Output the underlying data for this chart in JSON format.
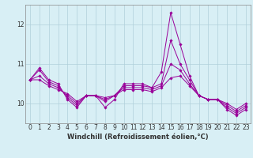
{
  "x": [
    0,
    1,
    2,
    3,
    4,
    5,
    6,
    7,
    8,
    9,
    10,
    11,
    12,
    13,
    14,
    15,
    16,
    17,
    18,
    19,
    20,
    21,
    22,
    23
  ],
  "series": [
    [
      10.6,
      10.9,
      10.6,
      10.5,
      10.1,
      9.9,
      10.2,
      10.2,
      9.9,
      10.1,
      10.5,
      10.5,
      10.5,
      10.4,
      10.8,
      12.3,
      11.5,
      10.7,
      10.2,
      10.1,
      10.1,
      9.85,
      9.7,
      9.85
    ],
    [
      10.6,
      10.85,
      10.55,
      10.45,
      10.15,
      9.95,
      10.2,
      10.2,
      10.05,
      10.2,
      10.45,
      10.45,
      10.45,
      10.4,
      10.5,
      11.6,
      11.0,
      10.6,
      10.2,
      10.1,
      10.1,
      9.9,
      9.75,
      9.9
    ],
    [
      10.6,
      10.7,
      10.5,
      10.4,
      10.2,
      10.0,
      10.2,
      10.2,
      10.1,
      10.2,
      10.4,
      10.4,
      10.4,
      10.35,
      10.45,
      11.0,
      10.85,
      10.5,
      10.2,
      10.1,
      10.1,
      9.95,
      9.8,
      9.95
    ],
    [
      10.6,
      10.6,
      10.45,
      10.35,
      10.25,
      10.05,
      10.2,
      10.2,
      10.15,
      10.2,
      10.35,
      10.35,
      10.35,
      10.3,
      10.4,
      10.65,
      10.7,
      10.45,
      10.2,
      10.1,
      10.1,
      10.0,
      9.85,
      10.0
    ]
  ],
  "line_color": "#990099",
  "marker": "D",
  "markersize": 1.8,
  "linewidth": 0.7,
  "bg_color": "#d8eff5",
  "grid_color": "#b0d0da",
  "tick_color": "#333333",
  "xlabel": "Windchill (Refroidissement éolien,°C)",
  "xlim": [
    -0.5,
    23.5
  ],
  "ylim": [
    9.5,
    12.5
  ],
  "yticks": [
    10,
    11,
    12
  ],
  "xticks": [
    0,
    1,
    2,
    3,
    4,
    5,
    6,
    7,
    8,
    9,
    10,
    11,
    12,
    13,
    14,
    15,
    16,
    17,
    18,
    19,
    20,
    21,
    22,
    23
  ],
  "label_fontsize": 6.0,
  "tick_fontsize": 5.5
}
